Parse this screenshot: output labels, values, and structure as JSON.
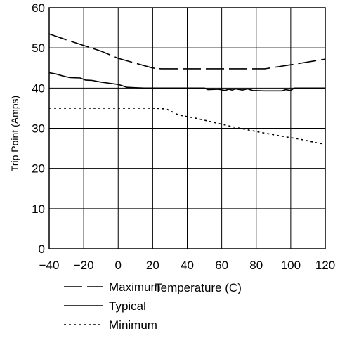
{
  "chart_data": {
    "type": "line",
    "title": "",
    "xlabel": "Temperature (C)",
    "ylabel": "Trip Point (Amps)",
    "xlim": [
      -40,
      120
    ],
    "ylim": [
      0,
      60
    ],
    "x_ticks": [
      "−40",
      "−20",
      "0",
      "20",
      "40",
      "60",
      "80",
      "100",
      "120"
    ],
    "y_ticks": [
      "0",
      "10",
      "20",
      "30",
      "40",
      "50",
      "60"
    ],
    "grid": true,
    "legend_position": "bottom-left",
    "series": [
      {
        "name": "Maximum",
        "style": "dash-dot",
        "color": "#000000",
        "points": [
          [
            -40,
            53.5
          ],
          [
            -30,
            52
          ],
          [
            -20,
            50.6
          ],
          [
            -10,
            49.2
          ],
          [
            0,
            47.4
          ],
          [
            10,
            46.2
          ],
          [
            20,
            45
          ],
          [
            25,
            44.8
          ],
          [
            40,
            44.8
          ],
          [
            60,
            44.8
          ],
          [
            85,
            44.8
          ],
          [
            100,
            45.8
          ],
          [
            120,
            47.2
          ]
        ]
      },
      {
        "name": "Typical",
        "style": "solid",
        "color": "#000000",
        "points": [
          [
            -40,
            43.8
          ],
          [
            -36,
            43.5
          ],
          [
            -32,
            43
          ],
          [
            -28,
            42.6
          ],
          [
            -22,
            42.5
          ],
          [
            -19,
            42
          ],
          [
            -15,
            41.9
          ],
          [
            -10,
            41.5
          ],
          [
            -5,
            41.2
          ],
          [
            0,
            40.9
          ],
          [
            3,
            40.5
          ],
          [
            5,
            40.2
          ],
          [
            10,
            40.1
          ],
          [
            15,
            40
          ],
          [
            50,
            40
          ],
          [
            52,
            39.6
          ],
          [
            58,
            39.7
          ],
          [
            62,
            39.4
          ],
          [
            64,
            39.7
          ],
          [
            66,
            39.5
          ],
          [
            68,
            39.8
          ],
          [
            72,
            39.5
          ],
          [
            75,
            39.8
          ],
          [
            78,
            39.4
          ],
          [
            85,
            39.3
          ],
          [
            95,
            39.3
          ],
          [
            97,
            39.6
          ],
          [
            100,
            39.4
          ],
          [
            102,
            40
          ],
          [
            120,
            40
          ]
        ]
      },
      {
        "name": "Minimum",
        "style": "dotted",
        "color": "#000000",
        "points": [
          [
            -40,
            35
          ],
          [
            -20,
            35
          ],
          [
            0,
            35
          ],
          [
            20,
            35
          ],
          [
            28,
            34.8
          ],
          [
            35,
            33.3
          ],
          [
            45,
            32.5
          ],
          [
            55,
            31.5
          ],
          [
            65,
            30.5
          ],
          [
            75,
            29.6
          ],
          [
            85,
            28.8
          ],
          [
            95,
            28
          ],
          [
            105,
            27.3
          ],
          [
            115,
            26.4
          ],
          [
            120,
            26
          ]
        ]
      }
    ]
  }
}
